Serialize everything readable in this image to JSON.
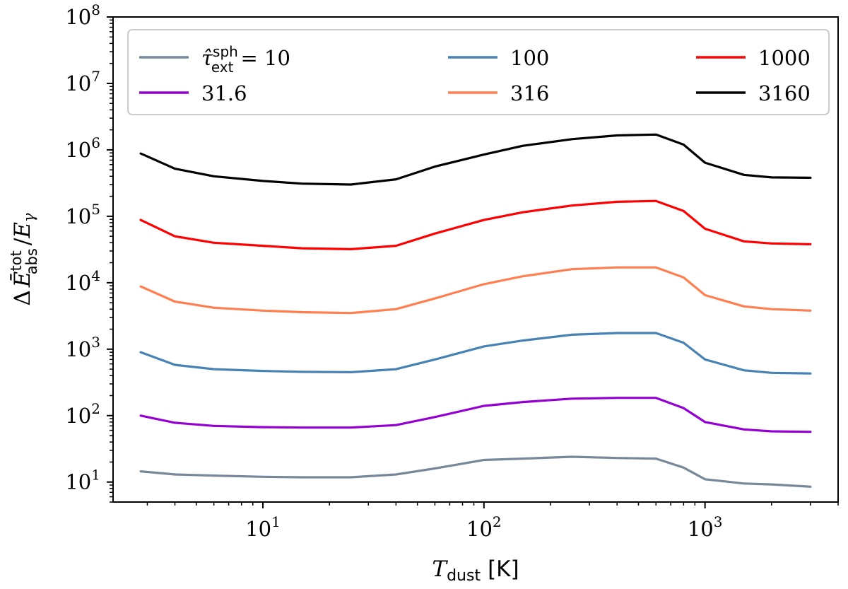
{
  "chart_data": {
    "type": "line",
    "title": "",
    "xlabel": {
      "symbol": "T",
      "sub": "dust",
      "unit": "[K]"
    },
    "ylabel": {
      "delta": "Δ",
      "symbol": "Ē",
      "sup": "tot",
      "sub": "abs",
      "slash": "/",
      "symbol2": "E",
      "sub2": "γ"
    },
    "xscale": "log",
    "yscale": "log",
    "xlim": [
      2.1,
      4000
    ],
    "ylim": [
      5,
      100000000
    ],
    "xticks": [
      {
        "value": 10,
        "base": "10",
        "exp": "1"
      },
      {
        "value": 100,
        "base": "10",
        "exp": "2"
      },
      {
        "value": 1000,
        "base": "10",
        "exp": "3"
      }
    ],
    "yticks": [
      {
        "value": 10,
        "base": "10",
        "exp": "1"
      },
      {
        "value": 100,
        "base": "10",
        "exp": "2"
      },
      {
        "value": 1000,
        "base": "10",
        "exp": "3"
      },
      {
        "value": 10000,
        "base": "10",
        "exp": "4"
      },
      {
        "value": 100000,
        "base": "10",
        "exp": "5"
      },
      {
        "value": 1000000,
        "base": "10",
        "exp": "6"
      },
      {
        "value": 10000000,
        "base": "10",
        "exp": "7"
      },
      {
        "value": 100000000,
        "base": "10",
        "exp": "8"
      }
    ],
    "grid": false,
    "legend": {
      "placement": "top",
      "columns": 3,
      "first_label_prefix": {
        "symbol": "τ̂",
        "sup": "sph",
        "sub": "ext",
        "eq": "= "
      }
    },
    "x": [
      2.8,
      4,
      6,
      10,
      15,
      25,
      40,
      60,
      100,
      150,
      250,
      400,
      600,
      800,
      1000,
      1500,
      2000,
      3000
    ],
    "series": [
      {
        "name": "10",
        "color": "#778899",
        "values": [
          14.5,
          13,
          12.5,
          12,
          11.8,
          11.8,
          13,
          16,
          21.5,
          22.5,
          24,
          23,
          22.5,
          16.5,
          11,
          9.5,
          9.2,
          8.5
        ]
      },
      {
        "name": "31.6",
        "color": "#9400d3",
        "values": [
          100,
          78,
          70,
          67,
          66,
          66,
          72,
          95,
          140,
          160,
          180,
          185,
          185,
          130,
          80,
          62,
          58,
          57
        ]
      },
      {
        "name": "100",
        "color": "#4682b4",
        "values": [
          900,
          580,
          500,
          470,
          455,
          450,
          500,
          700,
          1100,
          1350,
          1650,
          1750,
          1750,
          1250,
          700,
          480,
          440,
          430
        ]
      },
      {
        "name": "316",
        "color": "#ff7f50",
        "values": [
          8800,
          5200,
          4200,
          3800,
          3600,
          3500,
          4000,
          5800,
          9500,
          12500,
          16000,
          17000,
          17000,
          12000,
          6500,
          4400,
          4000,
          3800
        ]
      },
      {
        "name": "1000",
        "color": "#ff0000",
        "values": [
          88000,
          50000,
          40000,
          36000,
          33000,
          32000,
          36000,
          55000,
          88000,
          115000,
          145000,
          165000,
          170000,
          120000,
          65000,
          42000,
          39000,
          38000
        ]
      },
      {
        "name": "3160",
        "color": "#000000",
        "values": [
          880000,
          520000,
          400000,
          340000,
          310000,
          300000,
          360000,
          560000,
          850000,
          1150000,
          1450000,
          1650000,
          1700000,
          1200000,
          640000,
          420000,
          385000,
          380000
        ]
      }
    ]
  }
}
